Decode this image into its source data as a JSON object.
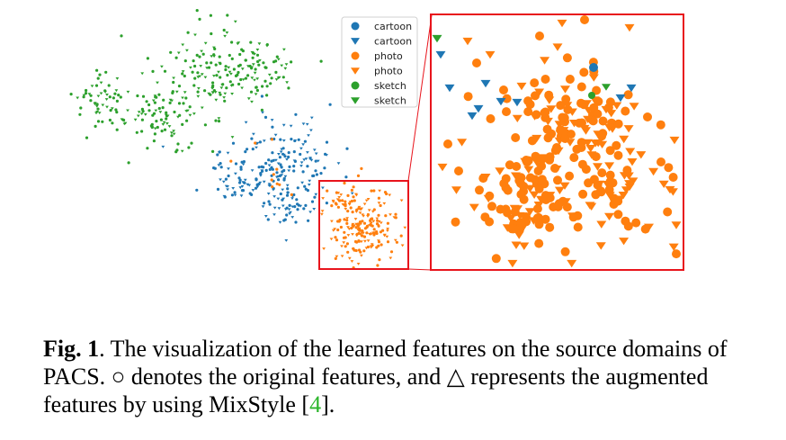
{
  "chart_data": {
    "type": "scatter",
    "title": "",
    "xlabel": "",
    "ylabel": "",
    "grid": false,
    "legend_placement": "top-center",
    "legend": [
      {
        "label": "cartoon",
        "marker": "circle",
        "color": "#1f77b4"
      },
      {
        "label": "cartoon",
        "marker": "triangle-down",
        "color": "#1f77b4"
      },
      {
        "label": "photo",
        "marker": "circle",
        "color": "#ff7f0e"
      },
      {
        "label": "photo",
        "marker": "triangle-down",
        "color": "#ff7f0e"
      },
      {
        "label": "sketch",
        "marker": "circle",
        "color": "#2ca02c"
      },
      {
        "label": "sketch",
        "marker": "triangle-down",
        "color": "#2ca02c"
      }
    ],
    "colors": {
      "cartoon": "#1f77b4",
      "photo": "#ff7f0e",
      "sketch": "#2ca02c",
      "zoom_box": "#e8141c"
    },
    "zoom_inset": true
  },
  "caption": {
    "label": "Fig. 1",
    "text_before_ref": ". The visualization of the learned features on the source domains of PACS. ○ denotes the original features, and △ represents the augmented features by using MixStyle [",
    "ref": "4",
    "text_after_ref": "]."
  }
}
